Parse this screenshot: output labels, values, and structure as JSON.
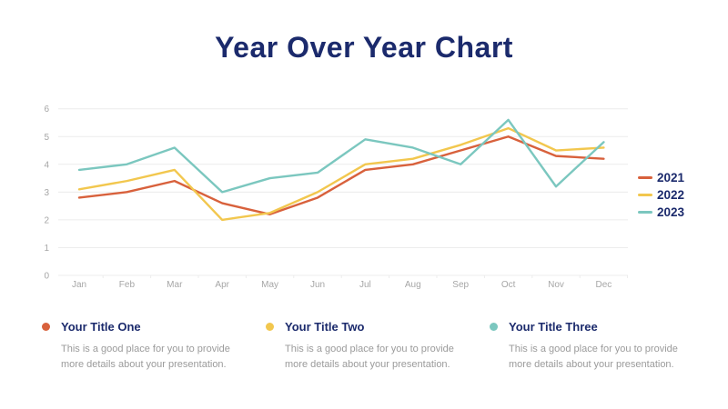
{
  "slide": {
    "title": "Year Over Year Chart"
  },
  "chart_data": {
    "type": "line",
    "title": "Year Over Year Chart",
    "categories": [
      "Jan",
      "Feb",
      "Mar",
      "Apr",
      "May",
      "Jun",
      "Jul",
      "Aug",
      "Sep",
      "Oct",
      "Nov",
      "Dec"
    ],
    "series": [
      {
        "name": "2021",
        "color": "#D8613C",
        "values": [
          2.8,
          3.0,
          3.4,
          2.6,
          2.2,
          2.8,
          3.8,
          4.0,
          4.5,
          5.0,
          4.3,
          4.2
        ]
      },
      {
        "name": "2022",
        "color": "#F2C74E",
        "values": [
          3.1,
          3.4,
          3.8,
          2.0,
          2.25,
          3.0,
          4.0,
          4.2,
          4.7,
          5.3,
          4.5,
          4.6
        ]
      },
      {
        "name": "2023",
        "color": "#7BC7BF",
        "values": [
          3.8,
          4.0,
          4.6,
          3.0,
          3.5,
          3.7,
          4.9,
          4.6,
          4.0,
          5.6,
          3.2,
          4.8
        ]
      }
    ],
    "xlabel": "",
    "ylabel": "",
    "ylim": [
      0,
      6
    ],
    "yticks": [
      0,
      1,
      2,
      3,
      4,
      5,
      6
    ],
    "grid": true,
    "legend_position": "right"
  },
  "footer": {
    "items": [
      {
        "title": "Your Title One",
        "color": "#D8613C",
        "description": "This is a good place for you to provide more details about your presentation."
      },
      {
        "title": "Your Title Two",
        "color": "#F2C74E",
        "description": "This is a good place for you to provide more details about your presentation."
      },
      {
        "title": "Your Title Three",
        "color": "#7BC7BF",
        "description": "This is a good place for you to provide more details about your presentation."
      }
    ]
  },
  "colors": {
    "background": "#FFFFFF",
    "title": "#1B2A6C",
    "axis_text": "#A6A6A6",
    "grid": "#ECECEC",
    "footer_text": "#9B9B9B"
  }
}
